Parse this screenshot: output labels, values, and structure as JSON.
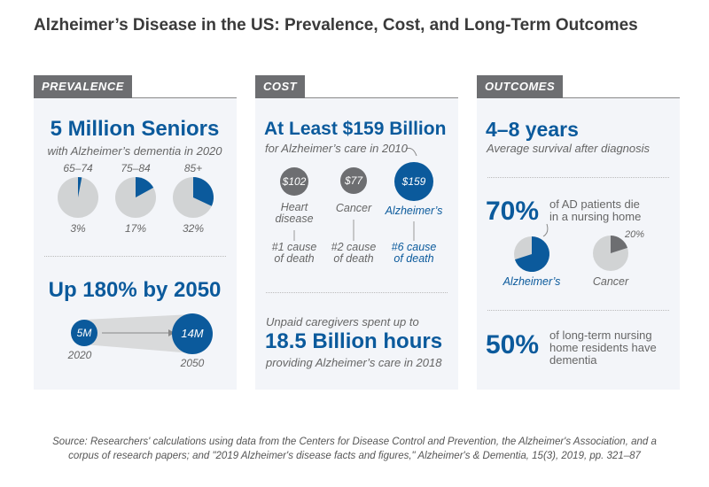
{
  "title": "Alzheimer’s Disease in the US: Prevalence, Cost, and Long-Term Outcomes",
  "colors": {
    "blue": "#0b5a9c",
    "dark_gray": "#6d6e71",
    "light_gray": "#d1d3d4",
    "panel_bg": "#f3f5f9"
  },
  "prevalence": {
    "tab": "PREVALENCE",
    "headline": "5 Million Seniors",
    "sub": "with Alzheimer’s dementia in 2020",
    "pies": [
      {
        "label": "65–74",
        "pct": 3,
        "pct_label": "3%"
      },
      {
        "label": "75–84",
        "pct": 17,
        "pct_label": "17%"
      },
      {
        "label": "85+",
        "pct": 32,
        "pct_label": "32%"
      }
    ],
    "growth_headline": "Up 180% by 2050",
    "from": {
      "value": "5M",
      "year": "2020"
    },
    "to": {
      "value": "14M",
      "year": "2050"
    }
  },
  "cost": {
    "tab": "COST",
    "headline": "At Least $159 Billion",
    "sub": "for Alzheimer’s care in 2010",
    "items": [
      {
        "value": "$102",
        "name": "Heart disease",
        "rank": "#1 cause of death"
      },
      {
        "value": "$77",
        "name": "Cancer",
        "rank": "#2 cause of death"
      },
      {
        "value": "$159",
        "name": "Alzheimer’s",
        "rank": "#6 cause of death"
      }
    ],
    "caregivers_pre": "Unpaid caregivers spent up to",
    "caregivers_big": "18.5 Billion hours",
    "caregivers_post": "providing Alzheimer’s care in 2018"
  },
  "outcomes": {
    "tab": "OUTCOMES",
    "headline": "4–8 years",
    "sub": "Average survival after diagnosis",
    "nursing_pct": "70%",
    "nursing_text_1": "of AD patients die",
    "nursing_text_2": "in a nursing home",
    "pies": [
      {
        "label": "Alzheimer’s",
        "pct": 70
      },
      {
        "label": "Cancer",
        "pct": 20,
        "pct_label": "20%"
      }
    ],
    "residents_pct": "50%",
    "residents_text_1": "of long-term nursing",
    "residents_text_2": "home residents have",
    "residents_text_3": "dementia"
  },
  "source": {
    "line1": "Source: Researchers' calculations using data from the Centers for Disease Control and Prevention, the Alzheimer's Association, and a",
    "line2": "corpus of research papers; and \"2019 Alzheimer's disease facts and figures,\" Alzheimer's & Dementia, 15(3), 2019, pp. 321–87"
  }
}
